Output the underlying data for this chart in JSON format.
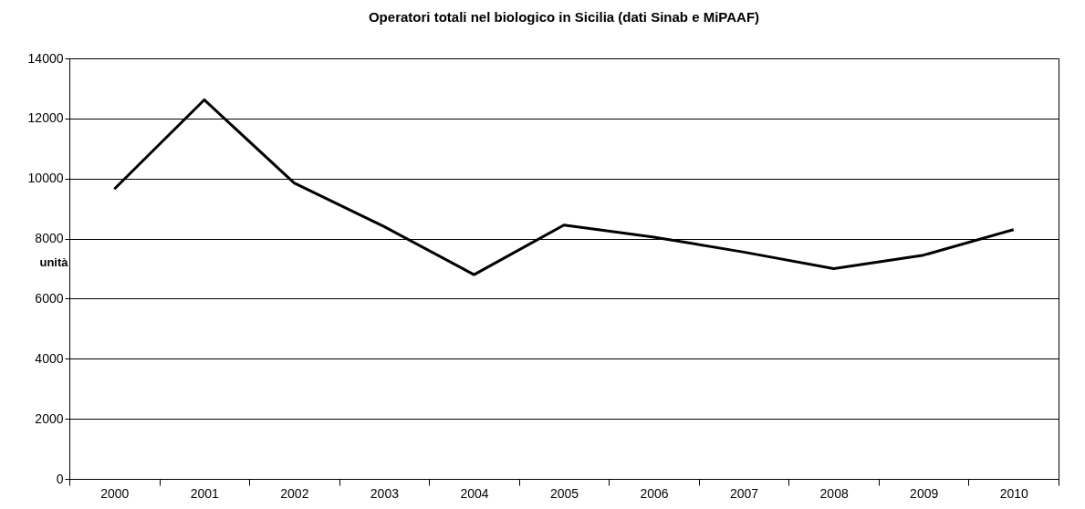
{
  "chart_data": {
    "type": "line",
    "title": "Operatori totali nel biologico in Sicilia (dati Sinab e MiPAAF)",
    "ylabel": "unità",
    "categories": [
      "2000",
      "2001",
      "2002",
      "2003",
      "2004",
      "2005",
      "2006",
      "2007",
      "2008",
      "2009",
      "2010"
    ],
    "series": [
      {
        "color": "#000000",
        "values": [
          9650,
          12620,
          9850,
          8400,
          6800,
          8450,
          8050,
          7550,
          7000,
          7450,
          8300
        ]
      }
    ],
    "ylim": [
      0,
      14000
    ],
    "yticks": [
      0,
      2000,
      4000,
      6000,
      8000,
      10000,
      12000,
      14000
    ],
    "grid": "y",
    "legend": false,
    "marker": "none",
    "line_style": "solid"
  }
}
